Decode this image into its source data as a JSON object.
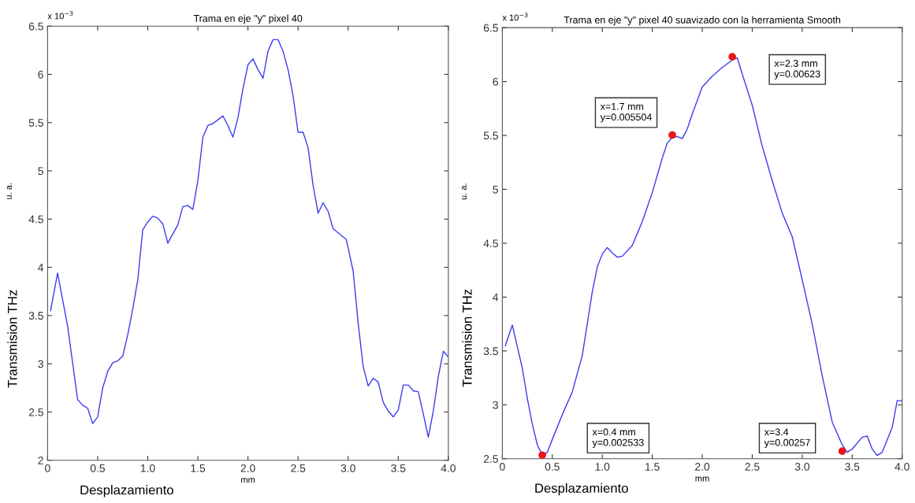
{
  "chart_data": [
    {
      "type": "line",
      "title": "Trama en eje \"y\" pixel 40",
      "xlabel": "mm",
      "ylabel": "u. a.",
      "annotations": [
        "x 10$^{−3}$",
        "Desplazamiento",
        "Transmision THz"
      ],
      "xlim": [
        0,
        4
      ],
      "xticks": [
        0,
        0.5,
        {
          "value": 1,
          "label": "1.0"
        },
        1.5,
        {
          "value": 2,
          "label": "2.0"
        },
        2.5,
        {
          "value": 3,
          "label": "3.0"
        },
        3.5,
        {
          "value": 4,
          "label": "4.0"
        }
      ],
      "ylim": [
        2,
        6.5
      ],
      "yticks": [
        2,
        2.5,
        3,
        3.5,
        4,
        4.5,
        5,
        5.5,
        6,
        6.5
      ],
      "grid": false,
      "legend": false,
      "series": [
        {
          "color": "#3c3cf0",
          "x": [
            0.03,
            0.1,
            0.2,
            0.3,
            0.35,
            0.4,
            0.45,
            0.5,
            0.55,
            0.6,
            0.65,
            0.7,
            0.75,
            0.8,
            0.85,
            0.9,
            0.95,
            1.0,
            1.05,
            1.1,
            1.15,
            1.2,
            1.3,
            1.35,
            1.4,
            1.45,
            1.5,
            1.55,
            1.6,
            1.65,
            1.7,
            1.75,
            1.8,
            1.85,
            1.9,
            1.95,
            2.0,
            2.05,
            2.1,
            2.15,
            2.2,
            2.25,
            2.3,
            2.35,
            2.4,
            2.45,
            2.5,
            2.55,
            2.6,
            2.65,
            2.7,
            2.75,
            2.8,
            2.85,
            2.98,
            3.0,
            3.05,
            3.1,
            3.15,
            3.2,
            3.25,
            3.3,
            3.35,
            3.4,
            3.45,
            3.5,
            3.55,
            3.6,
            3.65,
            3.7,
            3.75,
            3.8,
            3.85,
            3.9,
            3.95,
            4.0
          ],
          "values": [
            3.55,
            3.94,
            3.39,
            2.63,
            2.57,
            2.54,
            2.38,
            2.45,
            2.75,
            2.92,
            3.01,
            3.03,
            3.08,
            3.3,
            3.57,
            3.87,
            4.39,
            4.47,
            4.53,
            4.51,
            4.45,
            4.25,
            4.44,
            4.63,
            4.64,
            4.6,
            4.9,
            5.35,
            5.47,
            5.49,
            5.53,
            5.57,
            5.47,
            5.35,
            5.55,
            5.85,
            6.1,
            6.16,
            6.05,
            5.96,
            6.24,
            6.36,
            6.36,
            6.24,
            6.05,
            5.78,
            5.4,
            5.4,
            5.24,
            4.85,
            4.56,
            4.67,
            4.58,
            4.4,
            4.29,
            4.2,
            3.96,
            3.42,
            2.97,
            2.77,
            2.85,
            2.81,
            2.6,
            2.51,
            2.45,
            2.52,
            2.78,
            2.78,
            2.72,
            2.71,
            2.48,
            2.24,
            2.51,
            2.87,
            3.13,
            3.07
          ]
        }
      ]
    },
    {
      "type": "line",
      "title": "Trama en eje \"y\" pixel 40 suavizado con la herramienta Smooth",
      "xlabel": "mm",
      "ylabel": "u. a.",
      "annotations": [
        "x 10$^{−3}$",
        "Desplazamiento",
        "Transmision THz",
        "x=0.4 mm\ny=0.002533",
        "x=1.7 mm\ny=0.005504",
        "x=2.3 mm\ny=0.00623",
        "x=3.4\ny=0.00257"
      ],
      "xlim": [
        0,
        4
      ],
      "xticks": [
        0,
        0.5,
        {
          "value": 1,
          "label": "1.0"
        },
        1.5,
        {
          "value": 2,
          "label": "2.0"
        },
        2.5,
        {
          "value": 3,
          "label": "3.0"
        },
        3.5,
        {
          "value": 4,
          "label": "4.0"
        }
      ],
      "ylim": [
        2.5,
        6.5
      ],
      "yticks": [
        2.5,
        3,
        3.5,
        4,
        4.5,
        5,
        5.5,
        6,
        6.5
      ],
      "grid": false,
      "legend": false,
      "series": [
        {
          "color": "#3c3cf0",
          "x": [
            0.03,
            0.1,
            0.15,
            0.2,
            0.25,
            0.3,
            0.35,
            0.4,
            0.45,
            0.5,
            0.6,
            0.7,
            0.8,
            0.9,
            0.95,
            1.0,
            1.05,
            1.1,
            1.15,
            1.2,
            1.3,
            1.35,
            1.4,
            1.5,
            1.6,
            1.65,
            1.7,
            1.75,
            1.8,
            1.85,
            1.9,
            2.0,
            2.1,
            2.2,
            2.3,
            2.35,
            2.4,
            2.5,
            2.6,
            2.7,
            2.8,
            2.9,
            3.0,
            3.1,
            3.2,
            3.3,
            3.4,
            3.45,
            3.5,
            3.6,
            3.65,
            3.7,
            3.75,
            3.8,
            3.9,
            3.95,
            4.0
          ],
          "values": [
            3.55,
            3.74,
            3.54,
            3.34,
            3.06,
            2.82,
            2.63,
            2.53,
            2.56,
            2.68,
            2.91,
            3.12,
            3.46,
            4.05,
            4.28,
            4.4,
            4.46,
            4.41,
            4.37,
            4.38,
            4.48,
            4.59,
            4.7,
            4.97,
            5.29,
            5.43,
            5.48,
            5.49,
            5.47,
            5.56,
            5.7,
            5.95,
            6.05,
            6.13,
            6.2,
            6.22,
            6.07,
            5.78,
            5.4,
            5.08,
            4.78,
            4.56,
            4.16,
            3.75,
            3.27,
            2.84,
            2.63,
            2.56,
            2.59,
            2.7,
            2.71,
            2.59,
            2.53,
            2.56,
            2.79,
            3.04,
            3.04
          ]
        },
        {
          "type": "scatter",
          "color": "#e81818",
          "marker": "circle",
          "x": [
            0.4,
            1.7,
            2.3,
            3.4
          ],
          "values": [
            2.533,
            5.504,
            6.23,
            2.57
          ]
        }
      ]
    }
  ]
}
